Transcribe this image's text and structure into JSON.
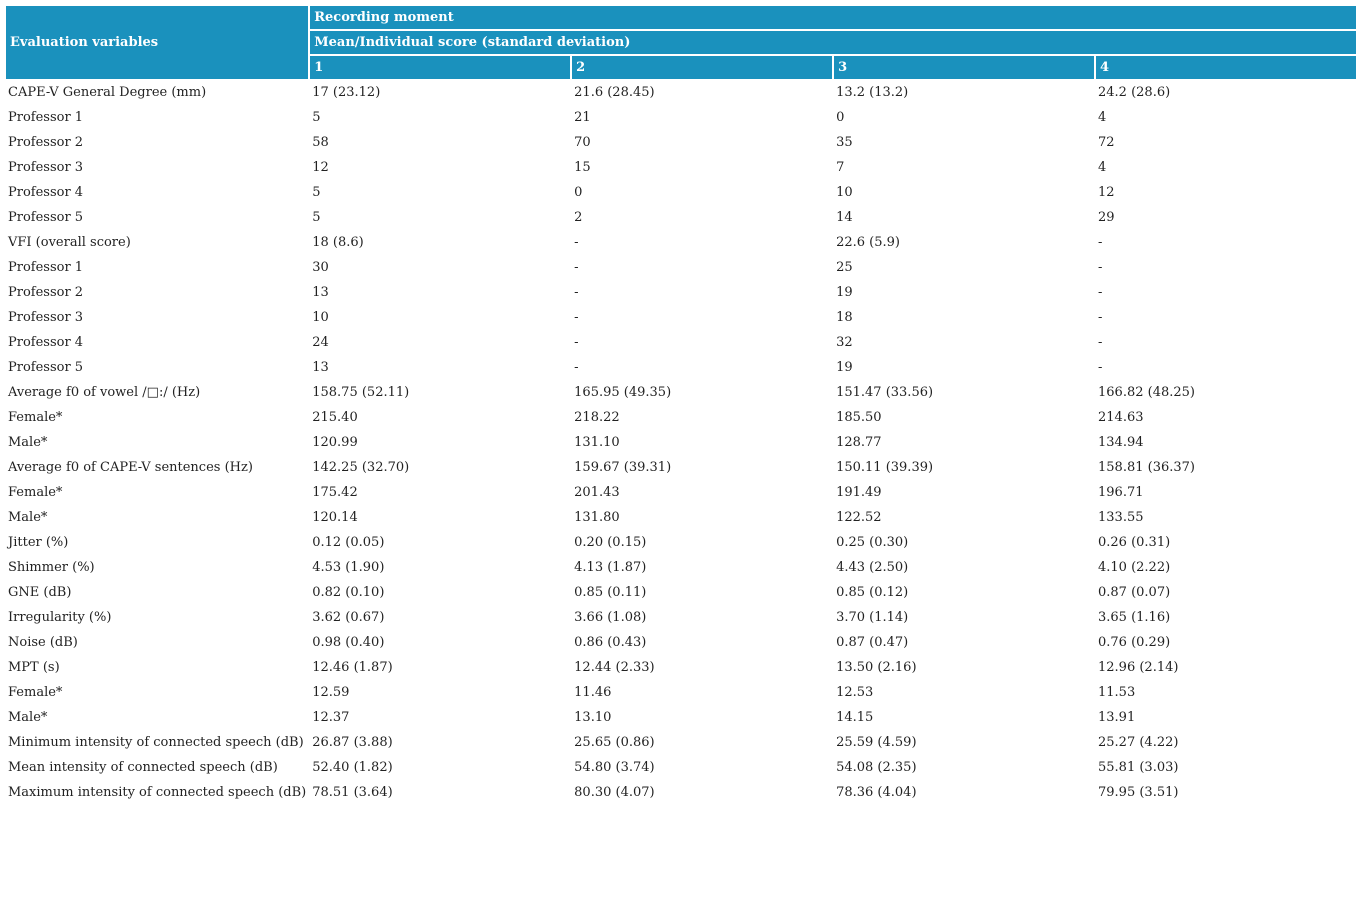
{
  "table": {
    "header": {
      "row_label": "Evaluation variables",
      "group_title": "Recording moment",
      "group_subtitle": "Mean/Individual score (standard deviation)",
      "moments": [
        "1",
        "2",
        "3",
        "4"
      ]
    },
    "rows": [
      {
        "label": "CAPE-V General Degree (mm)",
        "values": [
          "17 (23.12)",
          "21.6 (28.45)",
          "13.2 (13.2)",
          "24.2 (28.6)"
        ]
      },
      {
        "label": "Professor 1",
        "values": [
          "5",
          "21",
          "0",
          "4"
        ]
      },
      {
        "label": "Professor 2",
        "values": [
          "58",
          "70",
          "35",
          "72"
        ]
      },
      {
        "label": "Professor 3",
        "values": [
          "12",
          "15",
          "7",
          "4"
        ]
      },
      {
        "label": "Professor 4",
        "values": [
          "5",
          "0",
          "10",
          "12"
        ]
      },
      {
        "label": "Professor 5",
        "values": [
          "5",
          "2",
          "14",
          "29"
        ]
      },
      {
        "label": "VFI (overall score)",
        "values": [
          "18 (8.6)",
          "-",
          "22.6 (5.9)",
          "-"
        ]
      },
      {
        "label": "Professor 1",
        "values": [
          "30",
          "-",
          "25",
          "-"
        ]
      },
      {
        "label": "Professor 2",
        "values": [
          "13",
          "-",
          "19",
          "-"
        ]
      },
      {
        "label": "Professor 3",
        "values": [
          "10",
          "-",
          "18",
          "-"
        ]
      },
      {
        "label": "Professor 4",
        "values": [
          "24",
          "-",
          "32",
          "-"
        ]
      },
      {
        "label": "Professor 5",
        "values": [
          "13",
          "-",
          "19",
          "-"
        ]
      },
      {
        "label": "Average f0 of vowel /□:/ (Hz)",
        "values": [
          "158.75 (52.11)",
          "165.95 (49.35)",
          "151.47 (33.56)",
          "166.82 (48.25)"
        ]
      },
      {
        "label": "Female*",
        "values": [
          "215.40",
          "218.22",
          "185.50",
          "214.63"
        ]
      },
      {
        "label": "Male*",
        "values": [
          "120.99",
          "131.10",
          "128.77",
          "134.94"
        ]
      },
      {
        "label": "Average f0 of CAPE-V sentences (Hz)",
        "values": [
          "142.25 (32.70)",
          "159.67 (39.31)",
          "150.11 (39.39)",
          "158.81 (36.37)"
        ]
      },
      {
        "label": "Female*",
        "values": [
          "175.42",
          "201.43",
          "191.49",
          "196.71"
        ]
      },
      {
        "label": "Male*",
        "values": [
          "120.14",
          "131.80",
          "122.52",
          "133.55"
        ]
      },
      {
        "label": "Jitter (%)",
        "values": [
          "0.12 (0.05)",
          "0.20 (0.15)",
          "0.25 (0.30)",
          "0.26 (0.31)"
        ]
      },
      {
        "label": "Shimmer (%)",
        "values": [
          "4.53 (1.90)",
          "4.13 (1.87)",
          "4.43 (2.50)",
          "4.10 (2.22)"
        ]
      },
      {
        "label": "GNE (dB)",
        "values": [
          "0.82 (0.10)",
          "0.85 (0.11)",
          "0.85 (0.12)",
          "0.87 (0.07)"
        ]
      },
      {
        "label": "Irregularity (%)",
        "values": [
          "3.62 (0.67)",
          "3.66 (1.08)",
          "3.70 (1.14)",
          "3.65 (1.16)"
        ]
      },
      {
        "label": "Noise (dB)",
        "values": [
          "0.98 (0.40)",
          "0.86 (0.43)",
          "0.87 (0.47)",
          "0.76 (0.29)"
        ]
      },
      {
        "label": "MPT (s)",
        "values": [
          "12.46 (1.87)",
          "12.44 (2.33)",
          "13.50 (2.16)",
          "12.96 (2.14)"
        ]
      },
      {
        "label": "Female*",
        "values": [
          "12.59",
          "11.46",
          "12.53",
          "11.53"
        ]
      },
      {
        "label": "Male*",
        "values": [
          "12.37",
          "13.10",
          "14.15",
          "13.91"
        ]
      },
      {
        "label": "Minimum intensity of connected speech (dB)",
        "values": [
          "26.87 (3.88)",
          "25.65 (0.86)",
          "25.59 (4.59)",
          "25.27 (4.22)"
        ]
      },
      {
        "label": "Mean intensity of connected speech (dB)",
        "values": [
          "52.40 (1.82)",
          "54.80 (3.74)",
          "54.08 (2.35)",
          "55.81 (3.03)"
        ]
      },
      {
        "label": "Maximum intensity of connected speech (dB)",
        "values": [
          "78.51 (3.64)",
          "80.30 (4.07)",
          "78.36 (4.04)",
          "79.95 (3.51)"
        ]
      }
    ]
  }
}
